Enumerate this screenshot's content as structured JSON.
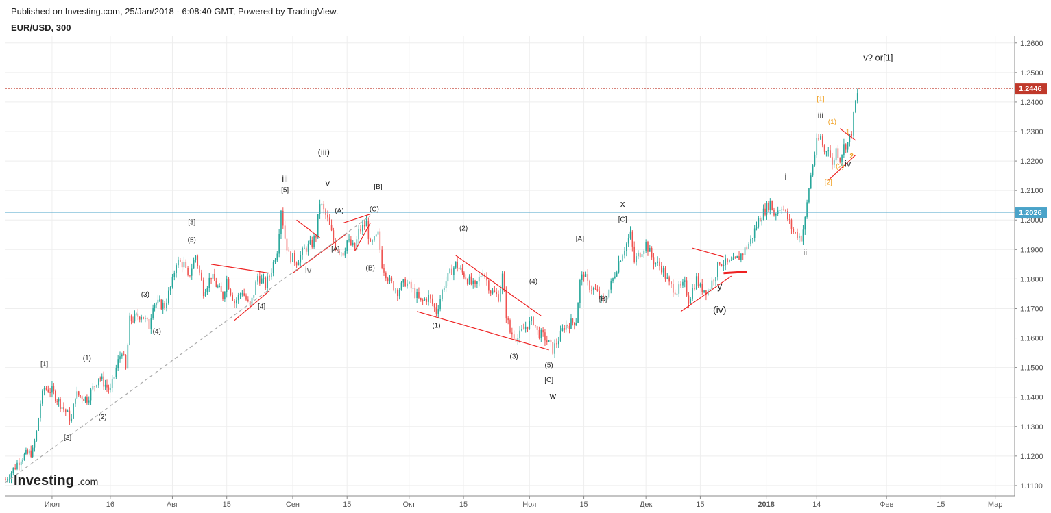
{
  "header": {
    "published": "Published on Investing.com, 25/Jan/2018 - 6:08:40 GMT, Powered by TradingView.",
    "symbol": "EUR/USD, 300"
  },
  "logo": {
    "main": "Investing",
    "suffix": ".com"
  },
  "colors": {
    "up": "#26a69a",
    "down": "#ef5350",
    "grid": "#eeeeee",
    "axis": "#555555",
    "priceLine": "#c0392b",
    "levelLine": "#4aa3c9",
    "trend": "#ee2222",
    "orange": "#f0a020",
    "dashed": "#aaaaaa"
  },
  "chart_data": {
    "type": "candlestick",
    "title": "EUR/USD, 300",
    "y_ticks": [
      "1.2600",
      "1.2500",
      "1.2400",
      "1.2300",
      "1.2200",
      "1.2100",
      "1.2000",
      "1.1900",
      "1.1800",
      "1.1700",
      "1.1600",
      "1.1500",
      "1.1400",
      "1.1300",
      "1.1200",
      "1.1100"
    ],
    "x_ticks": [
      {
        "label": "Июл",
        "date": "2017-07-01"
      },
      {
        "label": "16",
        "date": "2017-07-16"
      },
      {
        "label": "Авг",
        "date": "2017-08-01"
      },
      {
        "label": "15",
        "date": "2017-08-15"
      },
      {
        "label": "Сен",
        "date": "2017-09-01"
      },
      {
        "label": "15",
        "date": "2017-09-15"
      },
      {
        "label": "Окт",
        "date": "2017-10-01"
      },
      {
        "label": "15",
        "date": "2017-10-15"
      },
      {
        "label": "Ноя",
        "date": "2017-11-01"
      },
      {
        "label": "15",
        "date": "2017-11-15"
      },
      {
        "label": "Дек",
        "date": "2017-12-01"
      },
      {
        "label": "15",
        "date": "2017-12-15"
      },
      {
        "label": "2018",
        "date": "2018-01-01",
        "bold": true
      },
      {
        "label": "14",
        "date": "2018-01-14"
      },
      {
        "label": "Фев",
        "date": "2018-02-01"
      },
      {
        "label": "15",
        "date": "2018-02-15"
      },
      {
        "label": "Мар",
        "date": "2018-03-01"
      }
    ],
    "x_range": [
      "2017-06-19",
      "2018-03-06"
    ],
    "y_range": [
      1.1065,
      1.2625
    ],
    "current_price": {
      "value": 1.2446,
      "label": "1.2446"
    },
    "level_line": {
      "value": 1.2026,
      "label": "1.2026"
    },
    "candles_interval": "5 hours (300 min), sampled",
    "close_path": [
      [
        "2017-06-19",
        1.112
      ],
      [
        "2017-06-21",
        1.1155
      ],
      [
        "2017-06-23",
        1.1195
      ],
      [
        "2017-06-26",
        1.1215
      ],
      [
        "2017-06-27",
        1.128
      ],
      [
        "2017-06-28",
        1.138
      ],
      [
        "2017-06-29",
        1.143
      ],
      [
        "2017-07-01",
        1.142
      ],
      [
        "2017-07-04",
        1.136
      ],
      [
        "2017-07-06",
        1.132
      ],
      [
        "2017-07-07",
        1.141
      ],
      [
        "2017-07-10",
        1.1395
      ],
      [
        "2017-07-12",
        1.144
      ],
      [
        "2017-07-13",
        1.147
      ],
      [
        "2017-07-16",
        1.142
      ],
      [
        "2017-07-18",
        1.152
      ],
      [
        "2017-07-19",
        1.156
      ],
      [
        "2017-07-20",
        1.149
      ],
      [
        "2017-07-21",
        1.166
      ],
      [
        "2017-07-24",
        1.168
      ],
      [
        "2017-07-26",
        1.164
      ],
      [
        "2017-07-27",
        1.172
      ],
      [
        "2017-07-30",
        1.171
      ],
      [
        "2017-08-01",
        1.179
      ],
      [
        "2017-08-02",
        1.186
      ],
      [
        "2017-08-04",
        1.185
      ],
      [
        "2017-08-05",
        1.18
      ],
      [
        "2017-08-07",
        1.188
      ],
      [
        "2017-08-09",
        1.176
      ],
      [
        "2017-08-11",
        1.181
      ],
      [
        "2017-08-14",
        1.174
      ],
      [
        "2017-08-15",
        1.18
      ],
      [
        "2017-08-17",
        1.172
      ],
      [
        "2017-08-19",
        1.176
      ],
      [
        "2017-08-21",
        1.17
      ],
      [
        "2017-08-23",
        1.181
      ],
      [
        "2017-08-25",
        1.178
      ],
      [
        "2017-08-26",
        1.181
      ],
      [
        "2017-08-28",
        1.19
      ],
      [
        "2017-08-29",
        1.204
      ],
      [
        "2017-08-30",
        1.194
      ],
      [
        "2017-08-31",
        1.188
      ],
      [
        "2017-09-02",
        1.186
      ],
      [
        "2017-09-04",
        1.19
      ],
      [
        "2017-09-06",
        1.192
      ],
      [
        "2017-09-07",
        1.195
      ],
      [
        "2017-09-08",
        1.206
      ],
      [
        "2017-09-10",
        1.2
      ],
      [
        "2017-09-12",
        1.191
      ],
      [
        "2017-09-14",
        1.189
      ],
      [
        "2017-09-15",
        1.193
      ],
      [
        "2017-09-17",
        1.19
      ],
      [
        "2017-09-18",
        1.196
      ],
      [
        "2017-09-20",
        1.199
      ],
      [
        "2017-09-21",
        1.191
      ],
      [
        "2017-09-23",
        1.195
      ],
      [
        "2017-09-24",
        1.185
      ],
      [
        "2017-09-26",
        1.179
      ],
      [
        "2017-09-28",
        1.176
      ],
      [
        "2017-09-30",
        1.179
      ],
      [
        "2017-10-02",
        1.176
      ],
      [
        "2017-10-04",
        1.172
      ],
      [
        "2017-10-06",
        1.174
      ],
      [
        "2017-10-08",
        1.169
      ],
      [
        "2017-10-10",
        1.178
      ],
      [
        "2017-10-12",
        1.183
      ],
      [
        "2017-10-13",
        1.185
      ],
      [
        "2017-10-16",
        1.18
      ],
      [
        "2017-10-18",
        1.177
      ],
      [
        "2017-10-20",
        1.183
      ],
      [
        "2017-10-22",
        1.176
      ],
      [
        "2017-10-24",
        1.174
      ],
      [
        "2017-10-25",
        1.181
      ],
      [
        "2017-10-26",
        1.168
      ],
      [
        "2017-10-27",
        1.162
      ],
      [
        "2017-10-29",
        1.16
      ],
      [
        "2017-10-31",
        1.164
      ],
      [
        "2017-11-02",
        1.166
      ],
      [
        "2017-11-03",
        1.162
      ],
      [
        "2017-11-05",
        1.16
      ],
      [
        "2017-11-07",
        1.156
      ],
      [
        "2017-11-09",
        1.161
      ],
      [
        "2017-11-10",
        1.164
      ],
      [
        "2017-11-13",
        1.166
      ],
      [
        "2017-11-14",
        1.179
      ],
      [
        "2017-11-15",
        1.182
      ],
      [
        "2017-11-16",
        1.178
      ],
      [
        "2017-11-18",
        1.176
      ],
      [
        "2017-11-20",
        1.172
      ],
      [
        "2017-11-22",
        1.178
      ],
      [
        "2017-11-24",
        1.186
      ],
      [
        "2017-11-26",
        1.192
      ],
      [
        "2017-11-27",
        1.195
      ],
      [
        "2017-11-28",
        1.186
      ],
      [
        "2017-11-30",
        1.19
      ],
      [
        "2017-12-01",
        1.192
      ],
      [
        "2017-12-03",
        1.186
      ],
      [
        "2017-12-05",
        1.184
      ],
      [
        "2017-12-07",
        1.178
      ],
      [
        "2017-12-09",
        1.176
      ],
      [
        "2017-12-11",
        1.178
      ],
      [
        "2017-12-12",
        1.173
      ],
      [
        "2017-12-14",
        1.18
      ],
      [
        "2017-12-15",
        1.177
      ],
      [
        "2017-12-17",
        1.176
      ],
      [
        "2017-12-19",
        1.182
      ],
      [
        "2017-12-20",
        1.186
      ],
      [
        "2017-12-22",
        1.185
      ],
      [
        "2017-12-24",
        1.186
      ],
      [
        "2017-12-26",
        1.189
      ],
      [
        "2017-12-28",
        1.193
      ],
      [
        "2017-12-30",
        1.2
      ],
      [
        "2018-01-02",
        1.206
      ],
      [
        "2018-01-03",
        1.202
      ],
      [
        "2018-01-05",
        1.205
      ],
      [
        "2018-01-06",
        1.202
      ],
      [
        "2018-01-08",
        1.196
      ],
      [
        "2018-01-10",
        1.194
      ],
      [
        "2018-01-11",
        1.2
      ],
      [
        "2018-01-12",
        1.211
      ],
      [
        "2018-01-13",
        1.219
      ],
      [
        "2018-01-14",
        1.226
      ],
      [
        "2018-01-15",
        1.228
      ],
      [
        "2018-01-16",
        1.223
      ],
      [
        "2018-01-17",
        1.225
      ],
      [
        "2018-01-18",
        1.218
      ],
      [
        "2018-01-19",
        1.224
      ],
      [
        "2018-01-20",
        1.221
      ],
      [
        "2018-01-21",
        1.225
      ],
      [
        "2018-01-22",
        1.226
      ],
      [
        "2018-01-23",
        1.23
      ],
      [
        "2018-01-24",
        1.24
      ],
      [
        "2018-01-25",
        1.2446
      ]
    ],
    "annotations": [
      {
        "text": "[1]",
        "date": "2017-06-29",
        "price": 1.1505
      },
      {
        "text": "[2]",
        "date": "2017-07-05",
        "price": 1.1255
      },
      {
        "text": "(1)",
        "date": "2017-07-10",
        "price": 1.1525
      },
      {
        "text": "(2)",
        "date": "2017-07-14",
        "price": 1.1325
      },
      {
        "text": "(3)",
        "date": "2017-07-25",
        "price": 1.174
      },
      {
        "text": "(4)",
        "date": "2017-07-28",
        "price": 1.1615
      },
      {
        "text": "[3]",
        "date": "2017-08-06",
        "price": 1.1985
      },
      {
        "text": "(5)",
        "date": "2017-08-06",
        "price": 1.1925
      },
      {
        "text": "[4]",
        "date": "2017-08-24",
        "price": 1.17
      },
      {
        "text": "iii",
        "date": "2017-08-30",
        "price": 1.2128,
        "size": 13
      },
      {
        "text": "[5]",
        "date": "2017-08-30",
        "price": 1.2095
      },
      {
        "text": "(iii)",
        "date": "2017-09-09",
        "price": 1.222,
        "size": 13
      },
      {
        "text": "v",
        "date": "2017-09-10",
        "price": 1.2115,
        "size": 13
      },
      {
        "text": "iv",
        "date": "2017-09-05",
        "price": 1.182,
        "size": 13,
        "color": "#666"
      },
      {
        "text": "(A)",
        "date": "2017-09-13",
        "price": 1.2025
      },
      {
        "text": "[A]",
        "date": "2017-09-12",
        "price": 1.1895
      },
      {
        "text": "(B)",
        "date": "2017-09-21",
        "price": 1.183
      },
      {
        "text": "(C)",
        "date": "2017-09-22",
        "price": 1.203
      },
      {
        "text": "[B]",
        "date": "2017-09-23",
        "price": 1.2105
      },
      {
        "text": "(1)",
        "date": "2017-10-08",
        "price": 1.1635
      },
      {
        "text": "(2)",
        "date": "2017-10-15",
        "price": 1.1965
      },
      {
        "text": "(3)",
        "date": "2017-10-28",
        "price": 1.153
      },
      {
        "text": "(4)",
        "date": "2017-11-02",
        "price": 1.1785
      },
      {
        "text": "(5)",
        "date": "2017-11-06",
        "price": 1.15
      },
      {
        "text": "[C]",
        "date": "2017-11-06",
        "price": 1.145
      },
      {
        "text": "w",
        "date": "2017-11-07",
        "price": 1.1395,
        "size": 13
      },
      {
        "text": "[A]",
        "date": "2017-11-14",
        "price": 1.193
      },
      {
        "text": "[B]",
        "date": "2017-11-20",
        "price": 1.1725
      },
      {
        "text": "x",
        "date": "2017-11-25",
        "price": 1.2045,
        "size": 13
      },
      {
        "text": "[C]",
        "date": "2017-11-25",
        "price": 1.1995
      },
      {
        "text": "y",
        "date": "2017-12-20",
        "price": 1.1765,
        "size": 14
      },
      {
        "text": "(iv)",
        "date": "2017-12-20",
        "price": 1.1685,
        "size": 14
      },
      {
        "text": "i",
        "date": "2018-01-06",
        "price": 1.2135,
        "size": 13
      },
      {
        "text": "ii",
        "date": "2018-01-11",
        "price": 1.188,
        "size": 13
      },
      {
        "text": "[1]",
        "date": "2018-01-15",
        "price": 1.2403,
        "color": "#f0a020"
      },
      {
        "text": "iii",
        "date": "2018-01-15",
        "price": 1.2345,
        "size": 13
      },
      {
        "text": "(1)",
        "date": "2018-01-18",
        "price": 1.2325,
        "color": "#f0a020"
      },
      {
        "text": "1",
        "date": "2018-01-22",
        "price": 1.2292,
        "color": "#f0a020"
      },
      {
        "text": "2",
        "date": "2018-01-23",
        "price": 1.221,
        "color": "#f0a020",
        "bold": true
      },
      {
        "text": "(2)",
        "date": "2018-01-20",
        "price": 1.2175,
        "color": "#f0a020"
      },
      {
        "text": "iv",
        "date": "2018-01-22",
        "price": 1.218,
        "size": 13
      },
      {
        "text": "[2]",
        "date": "2018-01-17",
        "price": 1.212,
        "color": "#f0a020"
      },
      {
        "text": "v? or[1]",
        "date": "2018-01-26",
        "price": 1.254,
        "size": 13,
        "anchor": "start"
      }
    ],
    "trendlines": [
      {
        "color": "#ee2222",
        "points": [
          [
            "2017-08-11",
            1.185
          ],
          [
            "2017-08-26",
            1.182
          ]
        ]
      },
      {
        "color": "#ee2222",
        "points": [
          [
            "2017-08-17",
            1.166
          ],
          [
            "2017-08-26",
            1.176
          ]
        ]
      },
      {
        "color": "#ee2222",
        "points": [
          [
            "2017-09-01",
            1.182
          ],
          [
            "2017-09-15",
            1.1955
          ]
        ]
      },
      {
        "color": "#ee2222",
        "points": [
          [
            "2017-09-02",
            1.2
          ],
          [
            "2017-09-08",
            1.194
          ]
        ]
      },
      {
        "color": "#ee2222",
        "points": [
          [
            "2017-09-14",
            1.199
          ],
          [
            "2017-09-21",
            1.202
          ]
        ]
      },
      {
        "color": "#ee2222",
        "points": [
          [
            "2017-09-17",
            1.1895
          ],
          [
            "2017-09-21",
            1.199
          ]
        ]
      },
      {
        "color": "#ee2222",
        "points": [
          [
            "2017-10-03",
            1.169
          ],
          [
            "2017-11-06",
            1.156
          ]
        ]
      },
      {
        "color": "#ee2222",
        "points": [
          [
            "2017-10-13",
            1.188
          ],
          [
            "2017-11-04",
            1.1675
          ]
        ]
      },
      {
        "color": "#ee2222",
        "points": [
          [
            "2017-12-10",
            1.169
          ],
          [
            "2017-12-23",
            1.181
          ]
        ]
      },
      {
        "color": "#ee2222",
        "points": [
          [
            "2017-12-13",
            1.1905
          ],
          [
            "2017-12-21",
            1.1875
          ]
        ]
      },
      {
        "color": "#ee2222",
        "width": 3,
        "points": [
          [
            "2017-12-21",
            1.182
          ],
          [
            "2017-12-27",
            1.1825
          ]
        ]
      },
      {
        "color": "#ee2222",
        "points": [
          [
            "2018-01-17",
            1.2135
          ],
          [
            "2018-01-24",
            1.222
          ]
        ]
      },
      {
        "color": "#ee2222",
        "points": [
          [
            "2018-01-20",
            1.231
          ],
          [
            "2018-01-24",
            1.227
          ]
        ]
      },
      {
        "color": "#aaaaaa",
        "dashed": true,
        "points": [
          [
            "2017-06-19",
            1.111
          ],
          [
            "2017-09-21",
            1.2015
          ]
        ]
      }
    ]
  }
}
